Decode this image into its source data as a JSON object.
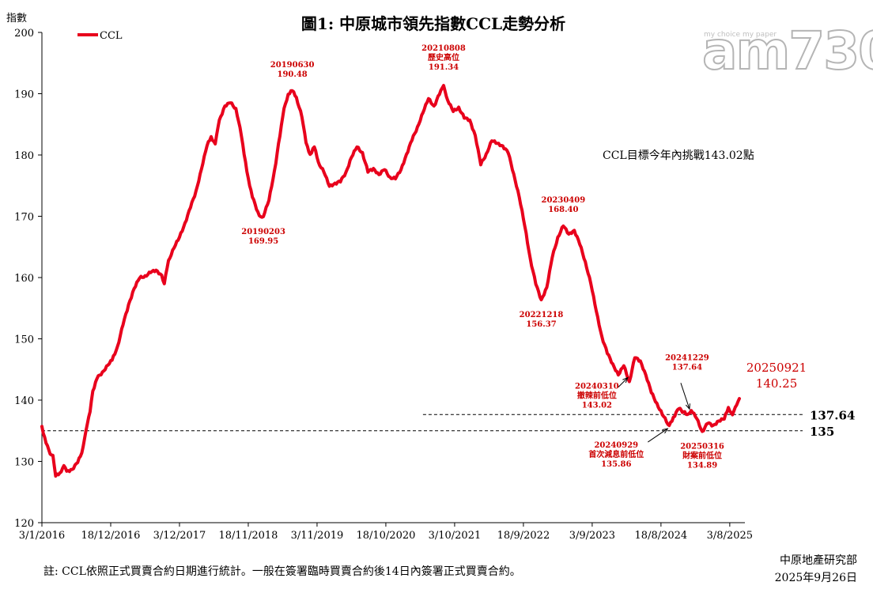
{
  "chart_data": {
    "type": "line",
    "title": "圖1: 中原城市領先指數CCL走勢分析",
    "ylabel": "指數",
    "ylim": [
      120,
      200
    ],
    "yticks": [
      "120",
      "130",
      "140",
      "150",
      "160",
      "170",
      "180",
      "190",
      "200"
    ],
    "xtick_labels": [
      "3/1/2016",
      "18/12/2016",
      "3/12/2017",
      "18/11/2018",
      "3/11/2019",
      "18/10/2020",
      "3/10/2021",
      "18/9/2022",
      "3/9/2023",
      "18/8/2024",
      "3/8/2025"
    ],
    "xlim": [
      "2016-01-03",
      "2025-10-19"
    ],
    "legend": "top-left",
    "series": [
      {
        "name": "CCL",
        "color": "#e8001c",
        "points": [
          [
            "2016-01-03",
            135.7
          ],
          [
            "2016-01-24",
            133.0
          ],
          [
            "2016-02-14",
            131.2
          ],
          [
            "2016-02-28",
            131.0
          ],
          [
            "2016-03-13",
            127.6
          ],
          [
            "2016-04-03",
            128.1
          ],
          [
            "2016-04-24",
            129.3
          ],
          [
            "2016-05-08",
            128.4
          ],
          [
            "2016-06-05",
            128.7
          ],
          [
            "2016-07-03",
            129.8
          ],
          [
            "2016-07-24",
            131.4
          ],
          [
            "2016-08-14",
            135.0
          ],
          [
            "2016-09-04",
            138.1
          ],
          [
            "2016-09-18",
            141.5
          ],
          [
            "2016-10-09",
            143.5
          ],
          [
            "2016-11-06",
            144.6
          ],
          [
            "2016-12-04",
            145.7
          ],
          [
            "2016-12-25",
            146.5
          ],
          [
            "2017-01-22",
            148.8
          ],
          [
            "2017-02-19",
            152.3
          ],
          [
            "2017-03-19",
            155.6
          ],
          [
            "2017-04-16",
            158.2
          ],
          [
            "2017-05-14",
            159.9
          ],
          [
            "2017-06-11",
            160.3
          ],
          [
            "2017-07-09",
            160.8
          ],
          [
            "2017-08-06",
            161.2
          ],
          [
            "2017-09-03",
            160.4
          ],
          [
            "2017-09-17",
            159.0
          ],
          [
            "2017-10-08",
            162.8
          ],
          [
            "2017-11-05",
            164.8
          ],
          [
            "2017-12-03",
            166.6
          ],
          [
            "2017-12-31",
            168.9
          ],
          [
            "2018-01-28",
            171.4
          ],
          [
            "2018-02-25",
            174.1
          ],
          [
            "2018-03-25",
            177.7
          ],
          [
            "2018-04-22",
            181.5
          ],
          [
            "2018-05-13",
            183.0
          ],
          [
            "2018-06-03",
            181.8
          ],
          [
            "2018-06-24",
            185.7
          ],
          [
            "2018-07-22",
            188.0
          ],
          [
            "2018-08-19",
            188.5
          ],
          [
            "2018-09-16",
            187.6
          ],
          [
            "2018-10-07",
            184.5
          ],
          [
            "2018-10-28",
            180.1
          ],
          [
            "2018-11-18",
            176.2
          ],
          [
            "2018-12-09",
            173.1
          ],
          [
            "2019-01-13",
            170.1
          ],
          [
            "2019-02-03",
            169.95
          ],
          [
            "2019-03-03",
            172.6
          ],
          [
            "2019-03-31",
            177.4
          ],
          [
            "2019-04-28",
            183.1
          ],
          [
            "2019-05-19",
            187.6
          ],
          [
            "2019-06-09",
            189.9
          ],
          [
            "2019-06-30",
            190.48
          ],
          [
            "2019-07-21",
            189.4
          ],
          [
            "2019-08-18",
            186.2
          ],
          [
            "2019-09-08",
            182.0
          ],
          [
            "2019-09-29",
            180.1
          ],
          [
            "2019-10-20",
            181.3
          ],
          [
            "2019-11-10",
            178.8
          ],
          [
            "2019-12-08",
            177.2
          ],
          [
            "2020-01-05",
            174.9
          ],
          [
            "2020-02-02",
            175.4
          ],
          [
            "2020-03-01",
            175.6
          ],
          [
            "2020-03-29",
            177.2
          ],
          [
            "2020-04-26",
            179.6
          ],
          [
            "2020-05-24",
            181.3
          ],
          [
            "2020-06-21",
            180.4
          ],
          [
            "2020-07-19",
            177.2
          ],
          [
            "2020-08-16",
            177.8
          ],
          [
            "2020-09-13",
            176.8
          ],
          [
            "2020-10-11",
            177.6
          ],
          [
            "2020-11-08",
            176.4
          ],
          [
            "2020-12-06",
            176.1
          ],
          [
            "2021-01-03",
            177.6
          ],
          [
            "2021-01-31",
            180.1
          ],
          [
            "2021-02-28",
            182.4
          ],
          [
            "2021-03-28",
            184.6
          ],
          [
            "2021-04-25",
            186.9
          ],
          [
            "2021-05-23",
            189.2
          ],
          [
            "2021-06-20",
            188.0
          ],
          [
            "2021-07-18",
            189.9
          ],
          [
            "2021-08-08",
            191.34
          ],
          [
            "2021-08-29",
            188.9
          ],
          [
            "2021-09-26",
            187.1
          ],
          [
            "2021-10-24",
            187.8
          ],
          [
            "2021-11-21",
            186.0
          ],
          [
            "2021-12-19",
            185.7
          ],
          [
            "2022-01-16",
            183.2
          ],
          [
            "2022-02-13",
            178.4
          ],
          [
            "2022-03-13",
            180.2
          ],
          [
            "2022-04-10",
            182.3
          ],
          [
            "2022-05-08",
            181.9
          ],
          [
            "2022-06-05",
            181.5
          ],
          [
            "2022-07-03",
            180.3
          ],
          [
            "2022-07-31",
            176.9
          ],
          [
            "2022-08-28",
            173.1
          ],
          [
            "2022-09-25",
            168.4
          ],
          [
            "2022-10-23",
            163.1
          ],
          [
            "2022-11-20",
            158.9
          ],
          [
            "2022-12-18",
            156.37
          ],
          [
            "2023-01-15",
            158.4
          ],
          [
            "2023-02-12",
            163.3
          ],
          [
            "2023-03-12",
            166.6
          ],
          [
            "2023-04-09",
            168.4
          ],
          [
            "2023-05-07",
            167.1
          ],
          [
            "2023-06-04",
            167.7
          ],
          [
            "2023-07-02",
            165.4
          ],
          [
            "2023-07-30",
            162.6
          ],
          [
            "2023-08-27",
            159.0
          ],
          [
            "2023-09-24",
            154.5
          ],
          [
            "2023-10-22",
            150.4
          ],
          [
            "2023-11-19",
            147.6
          ],
          [
            "2023-12-17",
            145.9
          ],
          [
            "2024-01-14",
            144.1
          ],
          [
            "2024-02-11",
            145.6
          ],
          [
            "2024-03-10",
            143.02
          ],
          [
            "2024-04-07",
            146.9
          ],
          [
            "2024-05-05",
            146.4
          ],
          [
            "2024-06-02",
            144.1
          ],
          [
            "2024-06-30",
            141.2
          ],
          [
            "2024-07-28",
            139.5
          ],
          [
            "2024-08-25",
            137.6
          ],
          [
            "2024-09-29",
            135.86
          ],
          [
            "2024-10-20",
            137.2
          ],
          [
            "2024-11-17",
            138.6
          ],
          [
            "2024-12-29",
            137.64
          ],
          [
            "2025-01-19",
            138.3
          ],
          [
            "2025-02-16",
            137.0
          ],
          [
            "2025-03-16",
            134.89
          ],
          [
            "2025-04-13",
            136.2
          ],
          [
            "2025-05-11",
            135.9
          ],
          [
            "2025-06-08",
            136.6
          ],
          [
            "2025-07-06",
            136.9
          ],
          [
            "2025-07-27",
            138.8
          ],
          [
            "2025-08-17",
            137.6
          ],
          [
            "2025-09-07",
            139.2
          ],
          [
            "2025-09-21",
            140.25
          ]
        ]
      }
    ],
    "reference_lines": [
      {
        "value": 137.64,
        "label": "137.64",
        "start": "2021-04-25"
      },
      {
        "value": 135,
        "label": "135",
        "start": "2016-01-03"
      }
    ],
    "annotations": [
      {
        "date_label": "20190203",
        "value_label": "169.95",
        "x": "2019-02-03",
        "y": 169.95,
        "pos": "below"
      },
      {
        "date_label": "20190630",
        "value_label": "190.48",
        "x": "2019-06-30",
        "y": 190.48,
        "pos": "above"
      },
      {
        "date_label": "20210808",
        "sub_label": "歷史高位",
        "value_label": "191.34",
        "x": "2021-08-08",
        "y": 191.34,
        "pos": "above3"
      },
      {
        "date_label": "20221218",
        "value_label": "156.37",
        "x": "2022-12-18",
        "y": 156.37,
        "pos": "below"
      },
      {
        "date_label": "20230409",
        "value_label": "168.40",
        "x": "2023-04-09",
        "y": 168.4,
        "pos": "above"
      },
      {
        "date_label": "20240310",
        "sub_label": "撤辣前低位",
        "value_label": "143.02",
        "x": "2024-03-10",
        "y": 143.02,
        "pos": "arrow-left"
      },
      {
        "date_label": "20240929",
        "sub_label": "首次減息前低位",
        "value_label": "135.86",
        "x": "2024-09-29",
        "y": 135.86,
        "pos": "arrow-below"
      },
      {
        "date_label": "20241229",
        "value_label": "137.64",
        "x": "2024-12-29",
        "y": 137.64,
        "pos": "arrow-above"
      },
      {
        "date_label": "20250316",
        "sub_label": "財案前低位",
        "value_label": "134.89",
        "x": "2025-03-16",
        "y": 134.89,
        "pos": "below"
      },
      {
        "date_label": "20250921",
        "value_label": "140.25",
        "x": "2025-09-21",
        "y": 140.25,
        "pos": "big"
      }
    ],
    "target_note": "CCL目標今年內挑戰143.02點"
  },
  "footnote": "註: CCL依照正式買賣合約日期進行統計。一般在簽署臨時買賣合約後14日內簽署正式買賣合約。",
  "source": "中原地產研究部",
  "date": "2025年9月26日",
  "watermark": {
    "big": "am730",
    "small": "my choice my paper"
  }
}
